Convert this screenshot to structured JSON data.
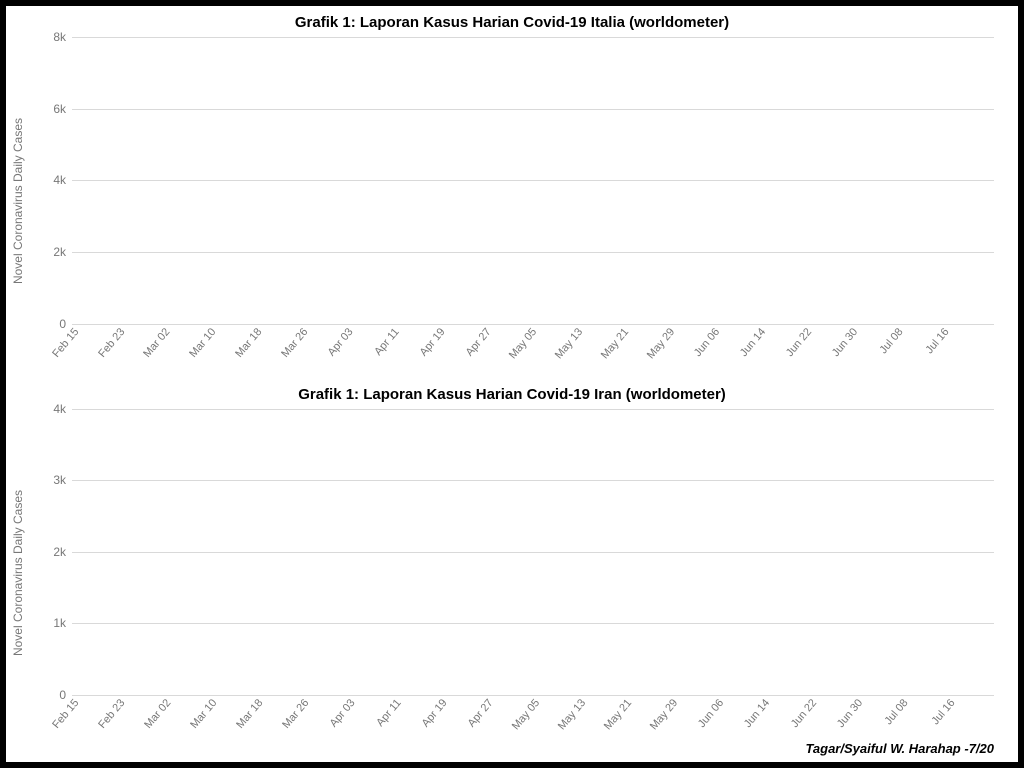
{
  "credit": "Tagar/Syaiful W. Harahap -7/20",
  "shared": {
    "ylabel": "Novel Coronavirus Daily Cases",
    "ylabel_fontsize": 12,
    "xlabels": [
      "Feb 15",
      "Feb 23",
      "Mar 02",
      "Mar 10",
      "Mar 18",
      "Mar 26",
      "Apr 03",
      "Apr 11",
      "Apr 19",
      "Apr 27",
      "May 05",
      "May 13",
      "May 21",
      "May 29",
      "Jun 06",
      "Jun 14",
      "Jun 22",
      "Jun 30",
      "Jul 08",
      "Jul 16"
    ],
    "xtick_stride_days": 8,
    "xtick_fontsize": 11,
    "xtick_color": "#777777",
    "bar_color": "#9e9e9e",
    "grid_color": "#d9d9d9",
    "background_color": "#ffffff",
    "ytick_color": "#777777",
    "ytick_fontsize": 12,
    "bar_width_ratio": 0.6
  },
  "chart1": {
    "type": "bar",
    "title": "Grafik 1: Laporan Kasus Harian Covid-19 Italia (worldometer)",
    "title_fontsize": 15,
    "ylim": [
      0,
      8000
    ],
    "ytick_step": 2000,
    "ytick_labels": [
      "0",
      "2k",
      "4k",
      "6k",
      "8k"
    ],
    "values": [
      10,
      20,
      30,
      50,
      80,
      120,
      150,
      200,
      240,
      300,
      350,
      500,
      550,
      700,
      800,
      900,
      1000,
      1050,
      1200,
      1300,
      1450,
      1600,
      1800,
      2000,
      2200,
      2500,
      2600,
      2800,
      3200,
      3500,
      3550,
      4200,
      5300,
      5700,
      5300,
      6500,
      5200,
      4800,
      6150,
      5900,
      5200,
      6000,
      5900,
      5200,
      4300,
      4700,
      4600,
      4500,
      4300,
      4200,
      4800,
      4100,
      3600,
      4000,
      3800,
      3500,
      4700,
      4300,
      3150,
      3600,
      3000,
      3400,
      3350,
      3150,
      2700,
      2500,
      2250,
      2350,
      2700,
      3050,
      2650,
      2350,
      1900,
      2100,
      1900,
      2100,
      2100,
      2000,
      1700,
      1400,
      1100,
      1450,
      1800,
      1500,
      1400,
      1400,
      1100,
      800,
      1350,
      1000,
      1000,
      1100,
      1050,
      780,
      450,
      750,
      900,
      800,
      650,
      640,
      530,
      250,
      670,
      650,
      580,
      660,
      590,
      330,
      200,
      520,
      420,
      400,
      440,
      440,
      350,
      200,
      510,
      600,
      600,
      550,
      350,
      300,
      180,
      430,
      390,
      480,
      430,
      450,
      160,
      130,
      340,
      350,
      380,
      350,
      290,
      220,
      190,
      330,
      300,
      270,
      220,
      320,
      260,
      120,
      300,
      300,
      210,
      250,
      280,
      200,
      140,
      260,
      280,
      250,
      290,
      290,
      170,
      240,
      300,
      290,
      280,
      330
    ]
  },
  "chart2": {
    "type": "bar",
    "title": "Grafik 1: Laporan Kasus Harian Covid-19 Iran (worldometer)",
    "title_fontsize": 15,
    "ylim": [
      0,
      4000
    ],
    "ytick_step": 1000,
    "ytick_labels": [
      "0",
      "1k",
      "2k",
      "3k",
      "4k"
    ],
    "values": [
      0,
      0,
      0,
      0,
      10,
      20,
      40,
      60,
      100,
      130,
      180,
      250,
      350,
      500,
      650,
      600,
      820,
      600,
      740,
      730,
      1230,
      760,
      960,
      1030,
      1030,
      1070,
      570,
      1290,
      1360,
      940,
      1050,
      1080,
      1190,
      1150,
      1200,
      1160,
      1400,
      1240,
      1180,
      1340,
      1100,
      1760,
      2000,
      2390,
      2200,
      2900,
      2700,
      2520,
      3080,
      3120,
      3180,
      2990,
      2480,
      2270,
      2100,
      2050,
      1980,
      1900,
      1850,
      2560,
      1830,
      1620,
      1500,
      1600,
      1640,
      1500,
      1400,
      1350,
      1200,
      1000,
      1040,
      1150,
      1290,
      1180,
      1140,
      1000,
      1040,
      990,
      800,
      1320,
      1150,
      1150,
      1000,
      1220,
      1200,
      1480,
      1500,
      1550,
      1670,
      1680,
      1800,
      1960,
      2100,
      1960,
      1980,
      2000,
      2250,
      2300,
      2340,
      2100,
      2030,
      1960,
      1870,
      2200,
      2280,
      2020,
      2000,
      2100,
      2500,
      2850,
      2810,
      2900,
      3140,
      3570,
      3100,
      2400,
      2700,
      2940,
      2900,
      2360,
      2200,
      2080,
      2330,
      2450,
      2550,
      2600,
      2580,
      2410,
      2500,
      2610,
      2530,
      2470,
      2550,
      2500,
      2320,
      2450,
      2470,
      2630,
      2490,
      2630,
      2450,
      2200,
      2550,
      2400,
      2640,
      2690,
      2400,
      2190,
      2200,
      2600,
      2690,
      2390,
      2490,
      2380,
      2210,
      2350,
      2180,
      2560,
      2520,
      2270,
      2170
    ]
  }
}
